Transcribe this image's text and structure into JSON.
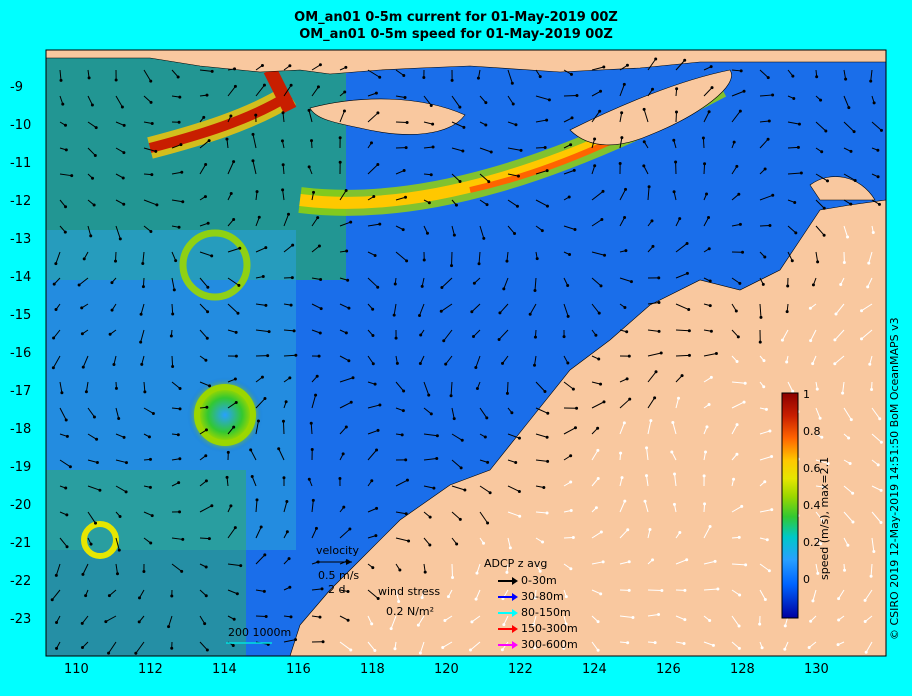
{
  "title_line1": "OM_an01 0-5m current for 01-May-2019 00Z",
  "title_line2": "OM_an01 0-5m speed for 01-May-2019 00Z",
  "credit": "© CSIRO 2019   12-May-2019 14:51:50 BoM OceanMAPS v3",
  "x_ticks": [
    "110",
    "112",
    "114",
    "116",
    "118",
    "120",
    "122",
    "124",
    "126",
    "128",
    "130"
  ],
  "y_ticks": [
    "-9",
    "-10",
    "-11",
    "-12",
    "-13",
    "-14",
    "-15",
    "-16",
    "-17",
    "-18",
    "-19",
    "-20",
    "-21",
    "-22",
    "-23"
  ],
  "colorbar": {
    "title": "speed (m/s), max=2.1",
    "ticks": [
      "1",
      "0.8",
      "0.6",
      "0.4",
      "0.2",
      "0"
    ],
    "colors": [
      "#8b0000",
      "#c81e00",
      "#ff6400",
      "#ffc800",
      "#e6e600",
      "#9bd700",
      "#32c832",
      "#00c8c8",
      "#28a0ff",
      "#0064ff",
      "#0000a0"
    ]
  },
  "legend": {
    "velocity_label": "velocity",
    "velocity_scale": "0.5 m/s",
    "velocity_time": "2 d",
    "wind_label": "wind stress",
    "wind_scale": "0.2 N/m²",
    "depth_scale": "200  1000m",
    "adcp_title": "ADCP z avg",
    "adcp_items": [
      {
        "label": "0-30m",
        "color": "#000000"
      },
      {
        "label": "30-80m",
        "color": "#0000ff"
      },
      {
        "label": "80-150m",
        "color": "#00ffff"
      },
      {
        "label": "150-300m",
        "color": "#ff0000"
      },
      {
        "label": "300-600m",
        "color": "#ff00ff"
      }
    ]
  },
  "colors": {
    "land": "#f9c89f",
    "ocean_deep": "#0a50e6",
    "background": "#00ffff"
  }
}
